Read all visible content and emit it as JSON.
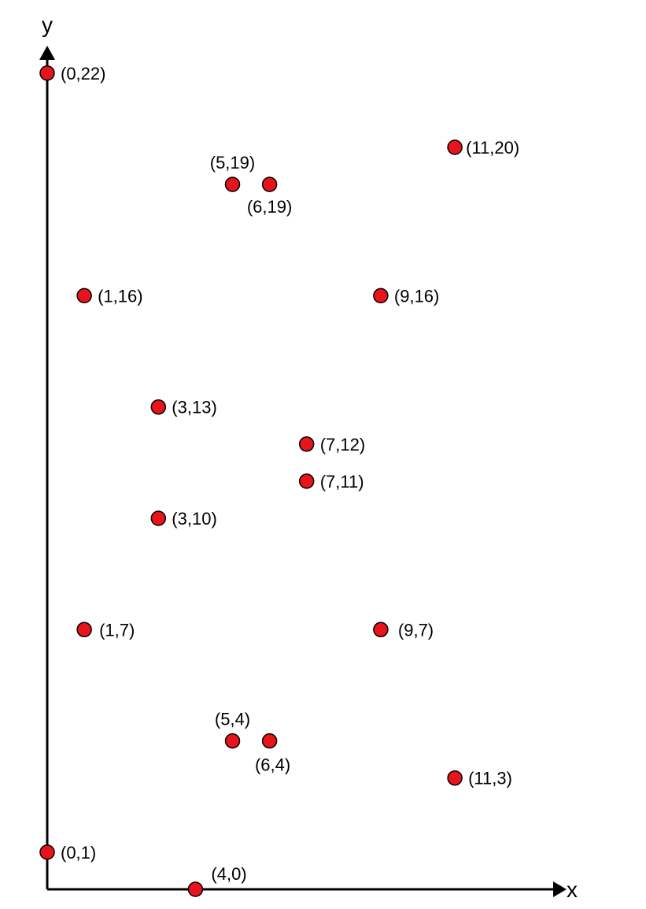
{
  "chart_data": {
    "type": "scatter",
    "title": "",
    "xlabel": "x",
    "ylabel": "y",
    "xlim": [
      0,
      14
    ],
    "ylim": [
      0,
      22
    ],
    "grid": false,
    "legend": "none",
    "point_color": "#e8141b",
    "series": [
      {
        "points": [
          {
            "x": 0,
            "y": 22,
            "label": "(0,22)"
          },
          {
            "x": 11,
            "y": 20,
            "label": "(11,20)"
          },
          {
            "x": 5,
            "y": 19,
            "label": "(5,19)"
          },
          {
            "x": 6,
            "y": 19,
            "label": "(6,19)"
          },
          {
            "x": 1,
            "y": 16,
            "label": "(1,16)"
          },
          {
            "x": 9,
            "y": 16,
            "label": "(9,16)"
          },
          {
            "x": 3,
            "y": 13,
            "label": "(3,13)"
          },
          {
            "x": 7,
            "y": 12,
            "label": "(7,12)"
          },
          {
            "x": 7,
            "y": 11,
            "label": "(7,11)"
          },
          {
            "x": 3,
            "y": 10,
            "label": "(3,10)"
          },
          {
            "x": 1,
            "y": 7,
            "label": "(1,7)"
          },
          {
            "x": 9,
            "y": 7,
            "label": "(9,7)"
          },
          {
            "x": 5,
            "y": 4,
            "label": "(5,4)"
          },
          {
            "x": 6,
            "y": 4,
            "label": "(6,4)"
          },
          {
            "x": 11,
            "y": 3,
            "label": "(11,3)"
          },
          {
            "x": 0,
            "y": 1,
            "label": "(0,1)"
          },
          {
            "x": 4,
            "y": 0,
            "label": "(4,0)"
          }
        ]
      }
    ]
  }
}
